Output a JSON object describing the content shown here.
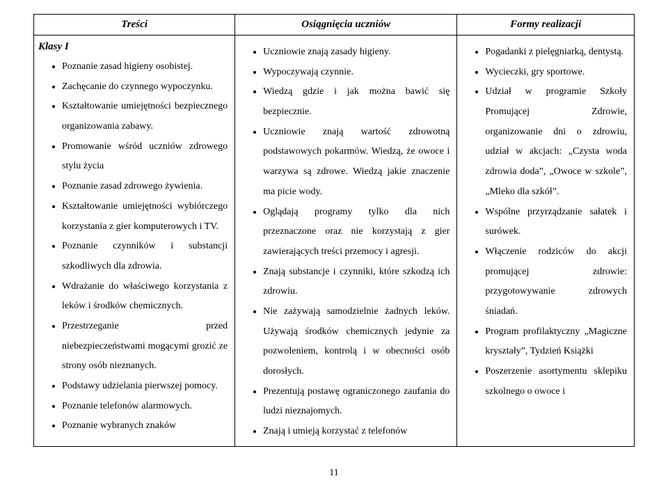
{
  "headers": {
    "c1": "Treści",
    "c2": "Osiągnięcia  uczniów",
    "c3": "Formy  realizacji"
  },
  "class_label": "Klasy  I",
  "col1_items": [
    "Poznanie  zasad  higieny  osobistej.",
    "Zachęcanie  do  czynnego  wypoczynku.",
    "Kształtowanie umiejętności bezpiecznego  organizowania  zabawy.",
    "Promowanie  wśród uczniów  zdrowego  stylu  życia",
    "Poznanie  zasad  zdrowego  żywienia.",
    "Kształtowanie   umiejętności  wybiórczego   korzystania  z   gier  komputerowych i TV.",
    "Poznanie  czynników i substancji  szkodliwych  dla  zdrowia.",
    "Wdrażanie do właściwego korzystania z leków i środków chemicznych.",
    "Przestrzeganie   przed  niebezpieczeństwami   mogącymi  grozić  ze   strony  osób   nieznanych.",
    "Podstawy udzielania pierwszej pomocy.",
    "Poznanie  telefonów  alarmowych.",
    "Poznanie   wybranych  znaków"
  ],
  "col2_items": [
    "Uczniowie  znają  zasady  higieny.",
    " Wypoczywają  czynnie.",
    "Wiedzą gdzie i jak można bawić się bezpiecznie.",
    "Uczniowie  znają  wartość   zdrowotną  podstawowych  pokarmów.  Wiedzą,  że  owoce i warzywa są zdrowe.  Wiedzą jakie  znaczenie ma picie wody.",
    "Oglądają  programy tylko  dla  nich  przeznaczone  oraz  nie  korzystają  z  gier  zawierających  treści  przemocy  i  agresji.",
    "Znają  substancje i czynniki, które  szkodzą  ich  zdrowiu.",
    "Nie  zażywają samodzielnie  żadnych leków.  Używają środków chemicznych jedynie za  pozwoleniem, kontrolą i w obecności osób dorosłych.",
    "Prezentują  postawę  ograniczonego  zaufania  do  ludzi  nieznajomych.",
    "Znają  i  umieją  korzystać  z  telefonów"
  ],
  "col3_items": [
    "Pogadanki  z  pielęgniarką,  dentystą.",
    "Wycieczki, gry  sportowe.",
    "Udział w programie Szkoły  Promującej Zdrowie,  organizowanie dni o zdrowiu,  udział w akcjach:  „Czysta woda  zdrowia  doda”,  „Owoce  w  szkole”,  „Mleko  dla szkół”.",
    "Wspólne  przyrządzanie  sałatek  i  surówek.",
    "Włączenie rodziców do akcji  promującej  zdrowie:  przygotowywanie  zdrowych  śniadań.",
    "Program  profilaktyczny  „Magiczne  kryształy”,  Tydzień  Książki",
    "Poszerzenie  asortymentu  sklepiku szkolnego o owoce  i"
  ],
  "page_number": "11"
}
